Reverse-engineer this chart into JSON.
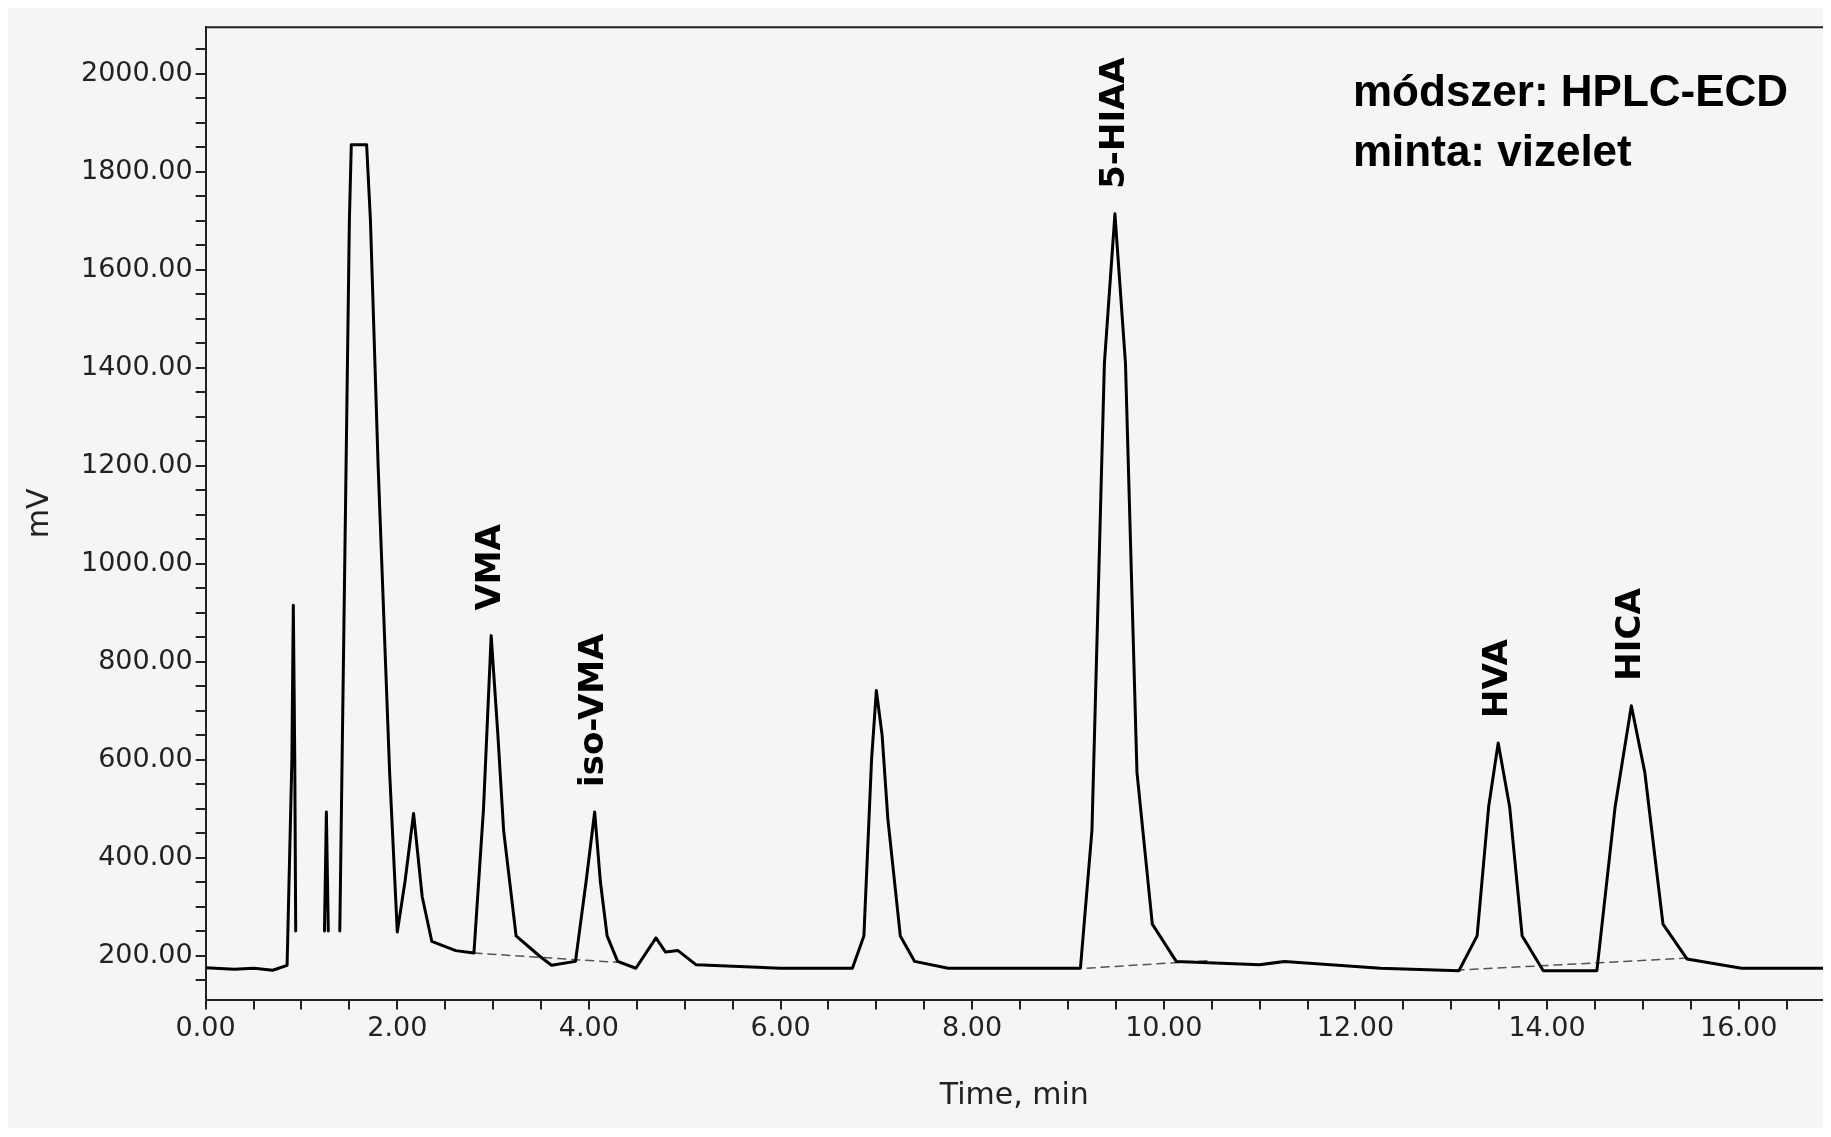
{
  "chart_data": {
    "type": "line",
    "xlabel": "Time, min",
    "ylabel": "mV",
    "xlim": [
      0,
      16.88
    ],
    "ylim": [
      110,
      2095
    ],
    "xticks": [
      {
        "value": 0,
        "label": "0.00"
      },
      {
        "value": 0.5,
        "label": null
      },
      {
        "value": 1,
        "label": null
      },
      {
        "value": 1.5,
        "label": null
      },
      {
        "value": 2,
        "label": "2.00"
      },
      {
        "value": 2.5,
        "label": null
      },
      {
        "value": 3,
        "label": null
      },
      {
        "value": 3.5,
        "label": null
      },
      {
        "value": 4,
        "label": "4.00"
      },
      {
        "value": 4.5,
        "label": null
      },
      {
        "value": 5,
        "label": null
      },
      {
        "value": 5.5,
        "label": null
      },
      {
        "value": 6,
        "label": "6.00"
      },
      {
        "value": 6.5,
        "label": null
      },
      {
        "value": 7,
        "label": null
      },
      {
        "value": 7.5,
        "label": null
      },
      {
        "value": 8,
        "label": "8.00"
      },
      {
        "value": 8.5,
        "label": null
      },
      {
        "value": 9,
        "label": null
      },
      {
        "value": 9.5,
        "label": null
      },
      {
        "value": 10,
        "label": "10.00"
      },
      {
        "value": 10.5,
        "label": null
      },
      {
        "value": 11,
        "label": null
      },
      {
        "value": 11.5,
        "label": null
      },
      {
        "value": 12,
        "label": "12.00"
      },
      {
        "value": 12.5,
        "label": null
      },
      {
        "value": 13,
        "label": null
      },
      {
        "value": 13.5,
        "label": null
      },
      {
        "value": 14,
        "label": "14.00"
      },
      {
        "value": 14.5,
        "label": null
      },
      {
        "value": 15,
        "label": null
      },
      {
        "value": 15.5,
        "label": null
      },
      {
        "value": 16,
        "label": "16.00"
      },
      {
        "value": 16.5,
        "label": null
      }
    ],
    "yticks": [
      {
        "value": 150,
        "label": null
      },
      {
        "value": 200,
        "label": "200.00"
      },
      {
        "value": 250,
        "label": null
      },
      {
        "value": 300,
        "label": null
      },
      {
        "value": 350,
        "label": null
      },
      {
        "value": 400,
        "label": "400.00"
      },
      {
        "value": 450,
        "label": null
      },
      {
        "value": 500,
        "label": null
      },
      {
        "value": 550,
        "label": null
      },
      {
        "value": 600,
        "label": "600.00"
      },
      {
        "value": 650,
        "label": null
      },
      {
        "value": 700,
        "label": null
      },
      {
        "value": 750,
        "label": null
      },
      {
        "value": 800,
        "label": "800.00"
      },
      {
        "value": 850,
        "label": null
      },
      {
        "value": 900,
        "label": null
      },
      {
        "value": 950,
        "label": null
      },
      {
        "value": 1000,
        "label": "1000.00"
      },
      {
        "value": 1050,
        "label": null
      },
      {
        "value": 1100,
        "label": null
      },
      {
        "value": 1150,
        "label": null
      },
      {
        "value": 1200,
        "label": "1200.00"
      },
      {
        "value": 1250,
        "label": null
      },
      {
        "value": 1300,
        "label": null
      },
      {
        "value": 1350,
        "label": null
      },
      {
        "value": 1400,
        "label": "1400.00"
      },
      {
        "value": 1450,
        "label": null
      },
      {
        "value": 1500,
        "label": null
      },
      {
        "value": 1550,
        "label": null
      },
      {
        "value": 1600,
        "label": "1600.00"
      },
      {
        "value": 1650,
        "label": null
      },
      {
        "value": 1700,
        "label": null
      },
      {
        "value": 1750,
        "label": null
      },
      {
        "value": 1800,
        "label": "1800.00"
      },
      {
        "value": 1850,
        "label": null
      },
      {
        "value": 1900,
        "label": null
      },
      {
        "value": 1950,
        "label": null
      },
      {
        "value": 2000,
        "label": "2000.00"
      },
      {
        "value": 2050,
        "label": null
      }
    ],
    "legend": false,
    "marker": "none",
    "series": [
      {
        "color": "#000000",
        "line_style": "solid",
        "x": [
          0,
          0.3,
          0.5,
          0.7,
          0.85,
          0.9,
          0.915,
          0.93,
          0.94,
          0.95,
          1.22,
          1.24,
          1.26,
          1.28,
          1.3,
          1.36,
          1.4,
          1.5,
          1.52,
          1.68,
          1.72,
          1.8,
          1.92,
          2.0,
          2.08,
          2.17,
          2.26,
          2.36,
          2.61,
          2.8,
          2.9,
          2.98,
          3.05,
          3.11,
          3.24,
          3.49,
          3.61,
          3.86,
          3.97,
          4.06,
          4.12,
          4.19,
          4.3,
          4.49,
          4.7,
          4.8,
          4.93,
          5.12,
          6.0,
          6.75,
          6.87,
          6.95,
          7.0,
          7.06,
          7.12,
          7.25,
          7.4,
          7.75,
          8.5,
          9.13,
          9.25,
          9.38,
          9.49,
          9.6,
          9.72,
          9.88,
          10.13,
          11.0,
          11.26,
          12.26,
          13.08,
          13.27,
          13.39,
          13.49,
          13.61,
          13.74,
          13.96,
          14.52,
          14.71,
          14.88,
          15.02,
          15.21,
          15.46,
          16.03,
          16.88
        ],
        "values": [
          175,
          172,
          174,
          170,
          180,
          600,
          915,
          600,
          250,
          null,
          null,
          250,
          493,
          250,
          null,
          null,
          250,
          1700,
          1855,
          1855,
          1700,
          1200,
          575,
          248,
          350,
          490,
          320,
          229,
          210,
          205,
          500,
          853,
          650,
          455,
          240,
          198,
          180,
          188,
          350,
          493,
          350,
          240,
          188,
          174,
          236,
          207,
          210,
          181,
          174,
          174,
          240,
          600,
          741,
          650,
          479,
          240,
          188,
          174,
          174,
          174,
          455,
          1409,
          1714,
          1409,
          574,
          264,
          188,
          181,
          188,
          174,
          169,
          240,
          503,
          634,
          503,
          240,
          169,
          169,
          503,
          710,
          574,
          264,
          193,
          174,
          174
        ]
      },
      {
        "color": "#555555",
        "line_style": "dashed",
        "x": [
          2.8,
          4.3
        ],
        "values": [
          205,
          186
        ]
      },
      {
        "color": "#555555",
        "line_style": "dashed",
        "x": [
          9.2,
          10.5
        ],
        "values": [
          174,
          190
        ]
      },
      {
        "color": "#555555",
        "line_style": "dashed",
        "x": [
          13.05,
          15.5
        ],
        "values": [
          170,
          195
        ]
      }
    ],
    "annotations": [
      {
        "text": "VMA",
        "x": 2.98,
        "y": 853
      },
      {
        "text": "iso-VMA",
        "x": 4.06,
        "y": 493
      },
      {
        "text": "5-HIAA",
        "x": 9.49,
        "y": 1714
      },
      {
        "text": "HVA",
        "x": 13.49,
        "y": 634
      },
      {
        "text": "HICA",
        "x": 14.88,
        "y": 710
      },
      "módszer: HPLC-ECD",
      "minta: vizelet"
    ]
  }
}
